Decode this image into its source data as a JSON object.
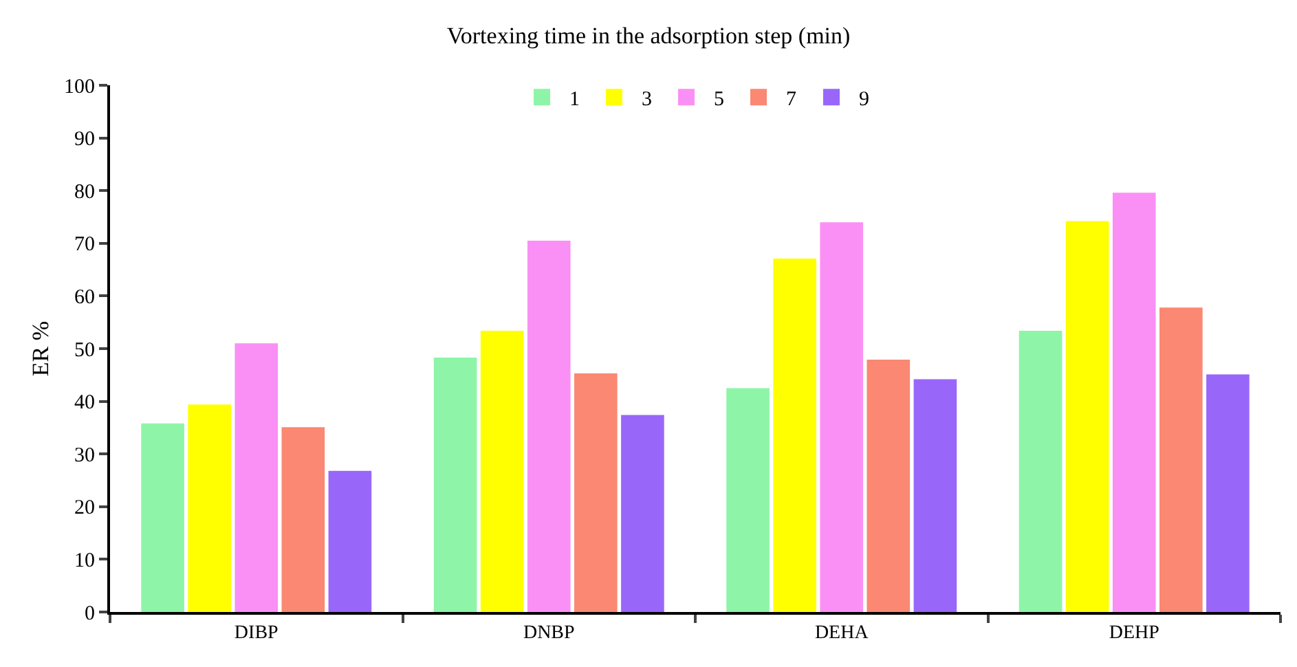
{
  "chart_data": {
    "type": "bar",
    "title": "Vortexing time in the adsorption step (min)",
    "ylabel": "ER %",
    "categories": [
      "DIBP",
      "DNBP",
      "DEHA",
      "DEHP"
    ],
    "series": [
      {
        "name": "1",
        "color": "#8ef5a8",
        "values": [
          35.8,
          48.3,
          42.5,
          53.4
        ]
      },
      {
        "name": "3",
        "color": "#ffff00",
        "values": [
          39.4,
          53.4,
          67.1,
          74.2
        ]
      },
      {
        "name": "5",
        "color": "#fa90f5",
        "values": [
          51,
          70.5,
          74,
          79.6
        ]
      },
      {
        "name": "7",
        "color": "#fa8872",
        "values": [
          35.1,
          45.3,
          47.9,
          57.8
        ]
      },
      {
        "name": "9",
        "color": "#9966fa",
        "values": [
          26.8,
          37.4,
          44.2,
          45.1
        ]
      }
    ],
    "ylim": [
      0,
      100
    ],
    "yticks": [
      0,
      10,
      20,
      30,
      40,
      50,
      60,
      70,
      80,
      90,
      100
    ],
    "grid": false,
    "legend": "top"
  }
}
